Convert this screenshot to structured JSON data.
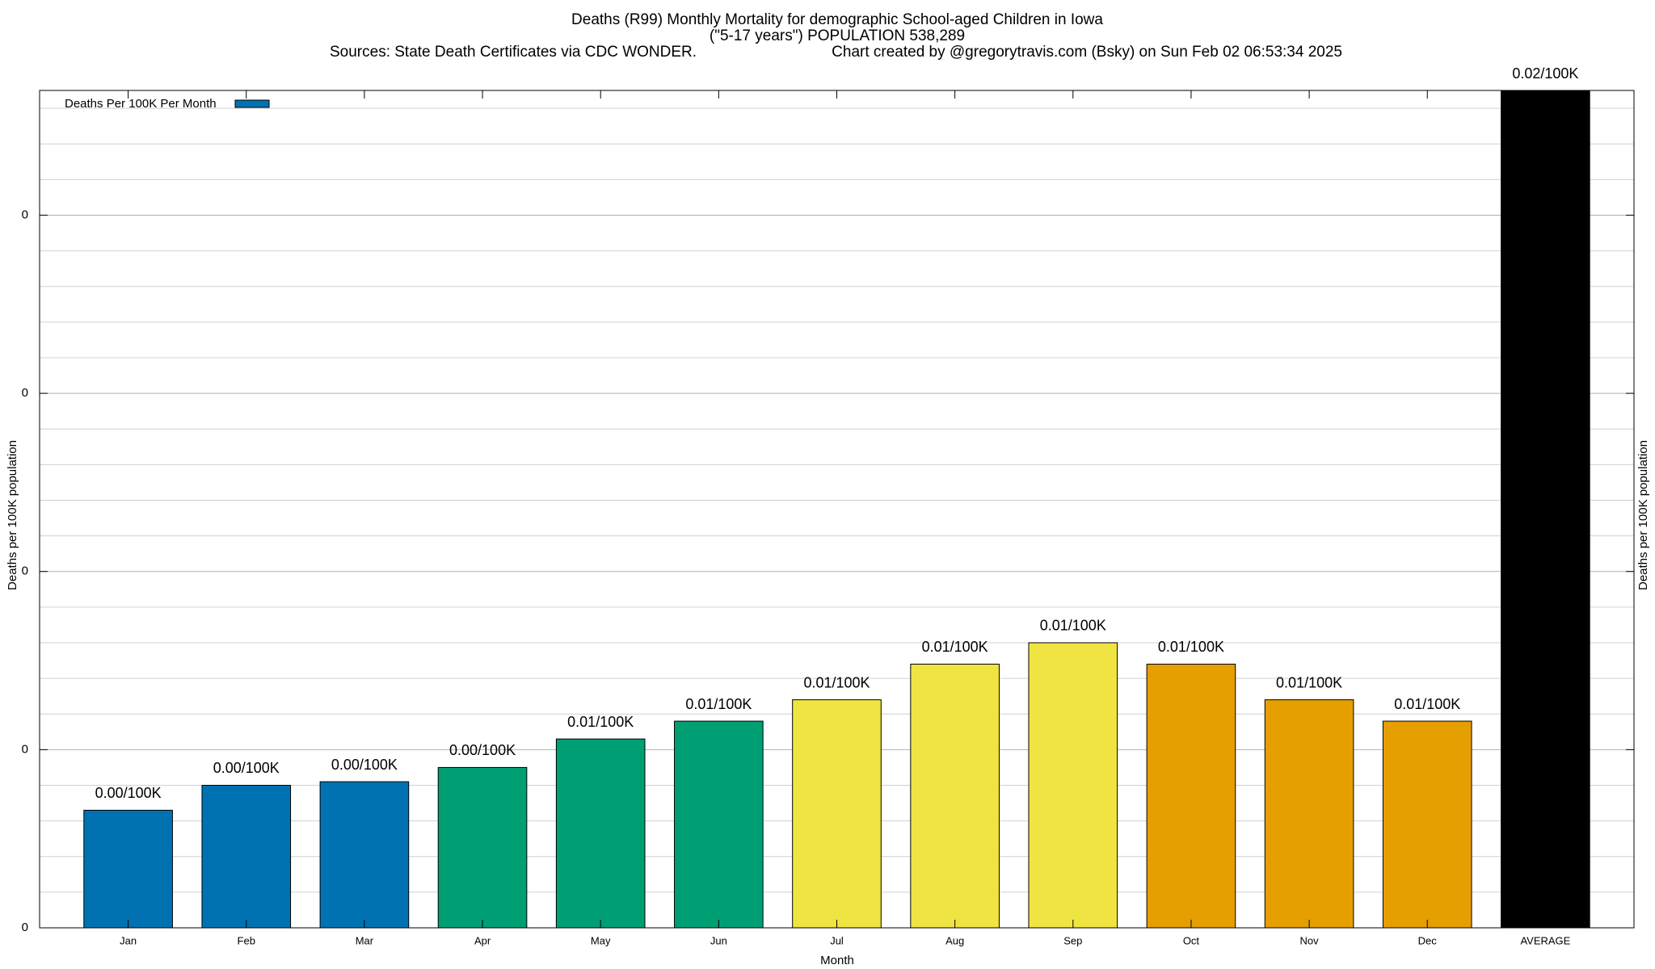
{
  "chart_data": {
    "type": "bar",
    "title": "Deaths (R99) Monthly Mortality for demographic School-aged Children in Iowa",
    "subtitle": "(\"5-17 years\") POPULATION 538,289",
    "source": "Sources: State Death Certificates via CDC WONDER.",
    "credit": "Chart created by @gregorytravis.com (Bsky) on Sun Feb 02 06:53:34 2025",
    "x_label": "Month",
    "y_label": "Deaths per 100K population",
    "y2_label": "Deaths per 100K population",
    "categories": [
      "Jan",
      "Feb",
      "Mar",
      "Apr",
      "May",
      "Jun",
      "Jul",
      "Aug",
      "Sep",
      "Oct",
      "Nov",
      "Dec",
      "AVERAGE"
    ],
    "series": [
      {
        "name": "Deaths Per 100K Per Month",
        "colors": [
          "#0072b2",
          "#0072b2",
          "#0072b2",
          "#009e73",
          "#009e73",
          "#009e73",
          "#f0e442",
          "#f0e442",
          "#f0e442",
          "#e69f00",
          "#e69f00",
          "#e69f00",
          "#000000"
        ],
        "values": [
          0.0033,
          0.004,
          0.0041,
          0.0045,
          0.0053,
          0.0058,
          0.0064,
          0.0074,
          0.008,
          0.0074,
          0.0064,
          0.0058,
          0.024
        ],
        "value_labels": [
          "0.00/100K",
          "0.00/100K",
          "0.00/100K",
          "0.00/100K",
          "0.01/100K",
          "0.01/100K",
          "0.01/100K",
          "0.01/100K",
          "0.01/100K",
          "0.01/100K",
          "0.01/100K",
          "0.01/100K",
          "0.02/100K"
        ]
      }
    ],
    "ylim": [
      0,
      0.0235
    ],
    "yticks": [
      0,
      {
        "value": 0.005,
        "label": "0"
      },
      {
        "value": 0.01,
        "label": "0"
      },
      {
        "value": 0.015,
        "label": "0"
      },
      {
        "value": 0.02,
        "label": "0"
      }
    ],
    "minor_yticks": [
      0.001,
      0.002,
      0.003,
      0.004,
      0.006,
      0.007,
      0.008,
      0.009,
      0.011,
      0.012,
      0.013,
      0.014,
      0.016,
      0.017,
      0.018,
      0.019,
      0.021,
      0.022,
      0.023
    ],
    "grid": true,
    "legend": "upper left"
  }
}
